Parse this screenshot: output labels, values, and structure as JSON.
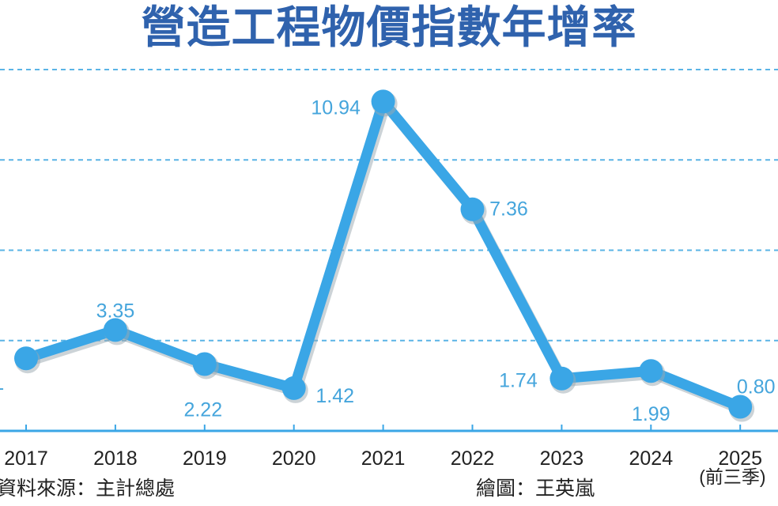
{
  "chart_data": {
    "type": "line",
    "title": "營造工程物價指數年增率",
    "categories": [
      "2017",
      "2018",
      "2019",
      "2020",
      "2021",
      "2022",
      "2023",
      "2024",
      "2025"
    ],
    "category_note": "(前三季)",
    "series": [
      {
        "name": "營造工程物價指數年增率",
        "values": [
          2.41,
          3.35,
          2.22,
          1.42,
          10.94,
          7.36,
          1.74,
          1.99,
          0.8
        ]
      }
    ],
    "value_labels": [
      "2.41",
      "3.35",
      "2.22",
      "1.42",
      "10.94",
      "7.36",
      "1.74",
      "1.99",
      "0.80"
    ],
    "ylim": [
      0,
      12
    ],
    "yticks": [
      3,
      6,
      9,
      12
    ],
    "grid": true,
    "xlabel": "",
    "ylabel": "",
    "colors": {
      "line": "#3aa6e6",
      "label": "#45a5dc",
      "title": "#2f62ad",
      "grid": "#5ab4e6"
    }
  },
  "footer": {
    "source": "資料來源：主計總處",
    "credit": "繪圖：王英嵐"
  }
}
